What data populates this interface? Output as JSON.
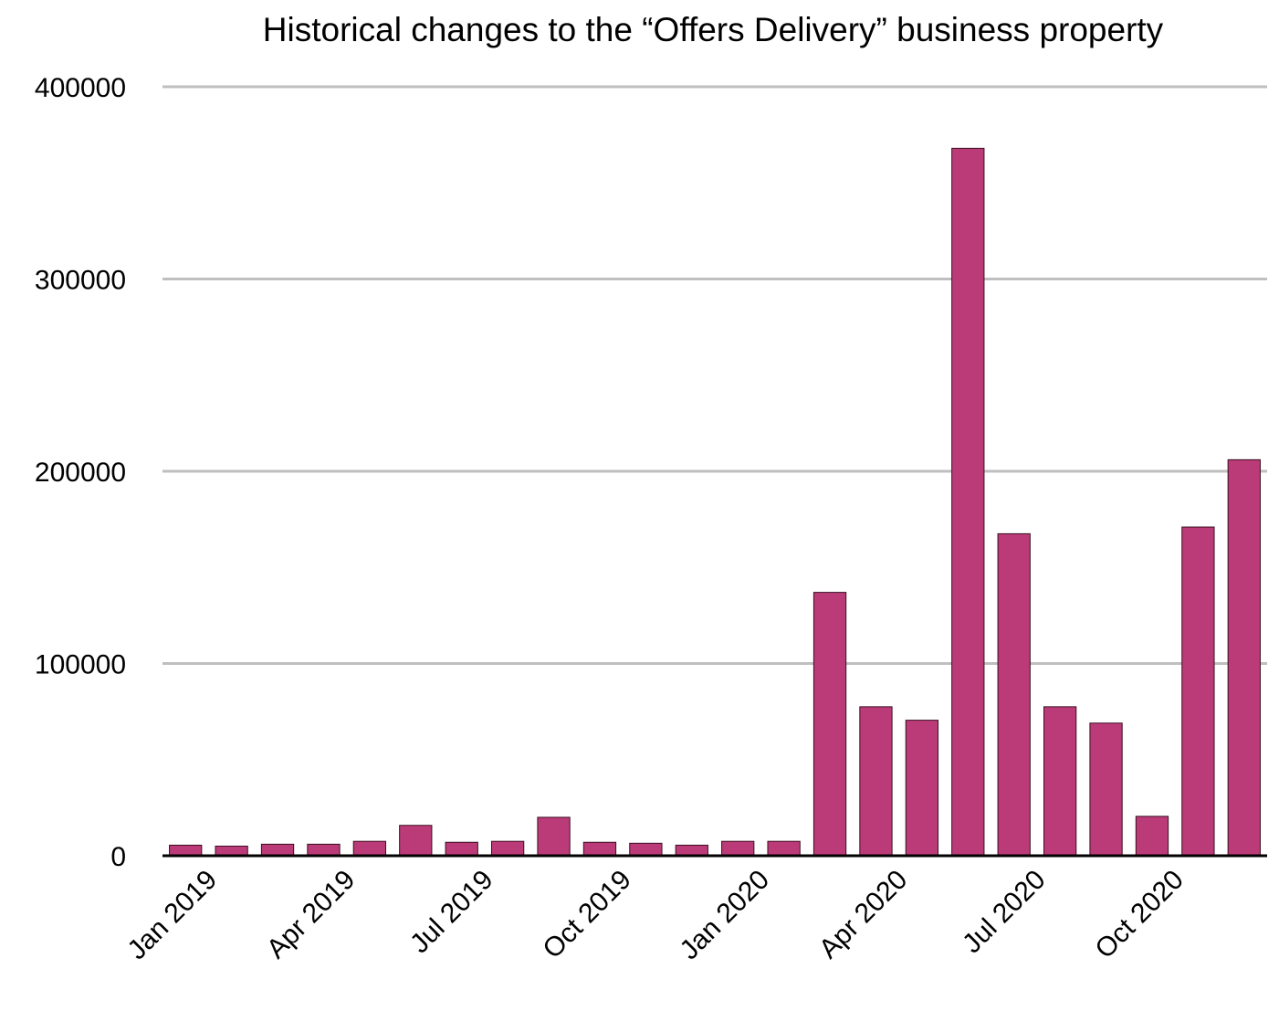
{
  "chart_data": {
    "type": "bar",
    "title": "Historical changes to the “Offers Delivery” business property",
    "xlabel": "",
    "ylabel": "",
    "ylim": [
      0,
      400000
    ],
    "yticks": [
      "0",
      "100000",
      "200000",
      "300000",
      "400000"
    ],
    "grid": true,
    "bar_color": "#bb3a78",
    "categories": [
      "Jan 2019",
      "Feb 2019",
      "Mar 2019",
      "Apr 2019",
      "May 2019",
      "Jun 2019",
      "Jul 2019",
      "Aug 2019",
      "Sep 2019",
      "Oct 2019",
      "Nov 2019",
      "Dec 2019",
      "Jan 2020",
      "Feb 2020",
      "Mar 2020",
      "Apr 2020",
      "May 2020",
      "Jun 2020",
      "Jul 2020",
      "Aug 2020",
      "Sep 2020",
      "Oct 2020",
      "Nov 2020",
      "Dec 2020"
    ],
    "visible_tick_labels": [
      "Jan 2019",
      "Apr 2019",
      "Jul 2019",
      "Oct 2019",
      "Jan 2020",
      "Apr 2020",
      "Jul 2020",
      "Oct 2020"
    ],
    "values": [
      5500,
      5000,
      6000,
      6000,
      7500,
      15800,
      7000,
      7500,
      20000,
      7000,
      6500,
      5500,
      7500,
      7500,
      137000,
      77500,
      70500,
      368000,
      167500,
      77500,
      69000,
      20500,
      171000,
      206000
    ]
  }
}
